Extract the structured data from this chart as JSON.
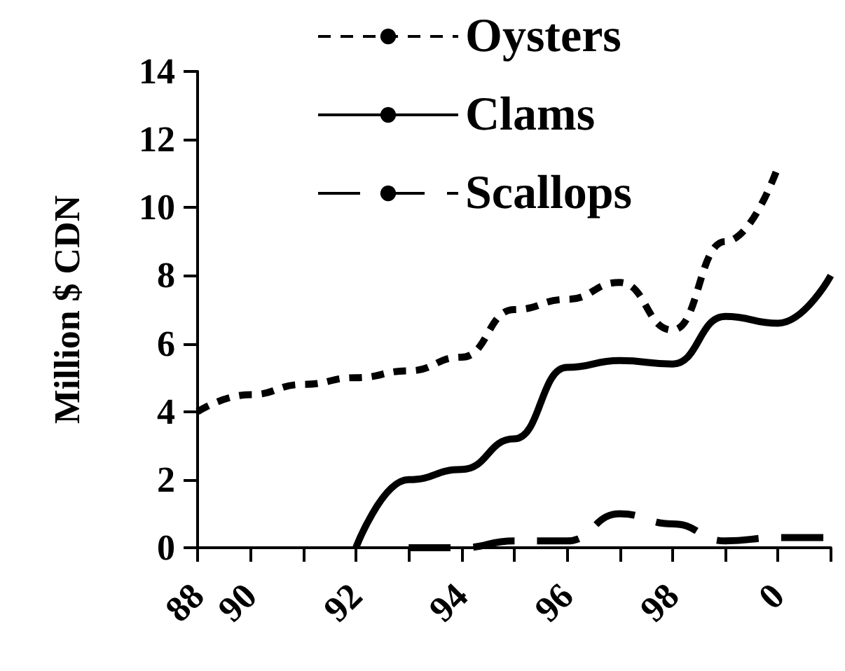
{
  "chart_data": {
    "type": "line",
    "ylabel": "Million $ CDN",
    "categories": [
      "88",
      "90",
      null,
      "92",
      null,
      "94",
      null,
      "96",
      null,
      "98",
      null,
      "0",
      null
    ],
    "series": [
      {
        "name": "Oysters",
        "color": "#000000",
        "line_style": "dotted",
        "values": [
          4.0,
          4.5,
          4.8,
          5.0,
          5.2,
          5.6,
          7.0,
          7.3,
          7.8,
          6.4,
          9.0,
          11.2,
          null
        ]
      },
      {
        "name": "Clams",
        "color": "#000000",
        "line_style": "solid",
        "values": [
          null,
          null,
          null,
          0,
          2.0,
          2.3,
          3.2,
          5.3,
          5.5,
          5.4,
          6.8,
          6.6,
          8.0
        ]
      },
      {
        "name": "Scallops",
        "color": "#000000",
        "line_style": "dashed",
        "values": [
          null,
          null,
          null,
          null,
          0,
          0,
          0.2,
          0.2,
          1.0,
          0.7,
          0.2,
          0.3,
          0.3
        ]
      }
    ],
    "ylim": [
      0,
      14
    ],
    "yticks": [
      0,
      2,
      4,
      6,
      8,
      10,
      12,
      14
    ],
    "grid": false,
    "legend": "top",
    "marker": "none"
  }
}
